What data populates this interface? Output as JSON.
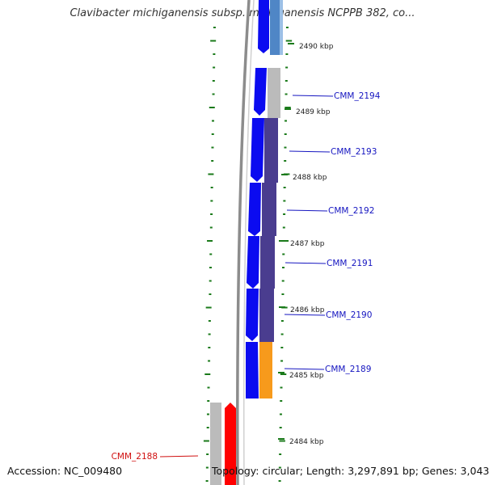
{
  "title": "Clavibacter michiganensis subsp. michiganensis NCPPB 382, co...",
  "footer": {
    "accession": "Accession: NC_009480",
    "summary": "Topology: circular; Length: 3,297,891 bp; Genes: 3,043"
  },
  "colors": {
    "tick": "#1a7a1a",
    "backbone": "#888888",
    "gene_blue": "#0b0bf0",
    "gene_light_blue": "#4f86c6",
    "gene_red": "#ff0000",
    "gray_block": "#bbbbbb",
    "purple_block": "#4a3d8f",
    "orange_block": "#f79a1c",
    "label_blue": "#1515c0",
    "label_red": "#d01010"
  },
  "ticks": [
    {
      "label": "2490 kbp"
    },
    {
      "label": "2489 kbp"
    },
    {
      "label": "2488 kbp"
    },
    {
      "label": "2487 kbp"
    },
    {
      "label": "2486 kbp"
    },
    {
      "label": "2485 kbp"
    },
    {
      "label": "2484 kbp"
    }
  ],
  "genes": [
    {
      "label": "CMM_2194"
    },
    {
      "label": "CMM_2193"
    },
    {
      "label": "CMM_2192"
    },
    {
      "label": "CMM_2191"
    },
    {
      "label": "CMM_2190"
    },
    {
      "label": "CMM_2189"
    },
    {
      "label": "CMM_2188"
    }
  ]
}
